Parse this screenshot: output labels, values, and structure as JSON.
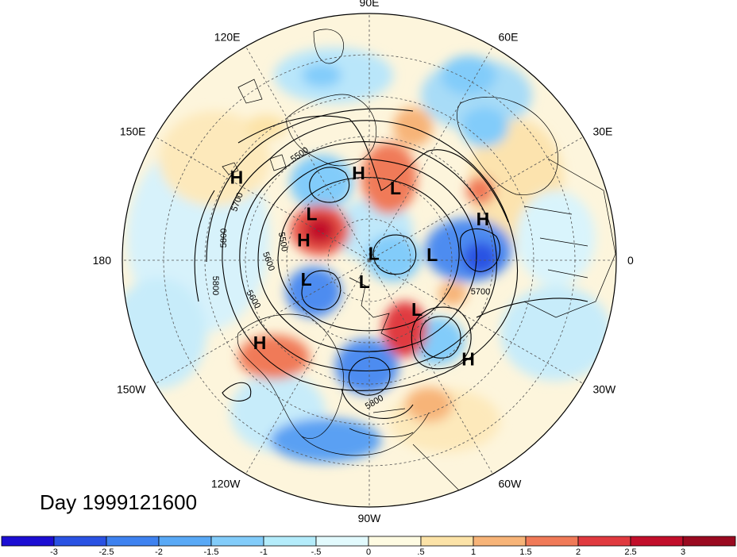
{
  "title": "Day 1999121600",
  "longitude_labels": [
    {
      "text": "90E",
      "angle": 90
    },
    {
      "text": "60E",
      "angle": 60
    },
    {
      "text": "30E",
      "angle": 30
    },
    {
      "text": "0",
      "angle": 0
    },
    {
      "text": "30W",
      "angle": -30
    },
    {
      "text": "60W",
      "angle": -60
    },
    {
      "text": "90W",
      "angle": -90
    },
    {
      "text": "120W",
      "angle": -120
    },
    {
      "text": "150W",
      "angle": -150
    },
    {
      "text": "180",
      "angle": 180
    },
    {
      "text": "150E",
      "angle": 150
    },
    {
      "text": "120E",
      "angle": 120
    }
  ],
  "pressure_centers": [
    {
      "type": "L",
      "lon": 70,
      "lat": 62
    },
    {
      "type": "H",
      "lon": 97,
      "lat": 58
    },
    {
      "type": "H",
      "lon": 148,
      "lat": 33
    },
    {
      "type": "L",
      "lon": 141,
      "lat": 63
    },
    {
      "type": "H",
      "lon": 163,
      "lat": 65
    },
    {
      "type": "H",
      "lon": 20,
      "lat": 46
    },
    {
      "type": "L",
      "lon": 56,
      "lat": 87
    },
    {
      "type": "L",
      "lon": 5,
      "lat": 67
    },
    {
      "type": "L",
      "lon": -163,
      "lat": 66
    },
    {
      "type": "L",
      "lon": -103,
      "lat": 82
    },
    {
      "type": "L",
      "lon": -46,
      "lat": 65
    },
    {
      "type": "H",
      "lon": -143,
      "lat": 40
    },
    {
      "type": "H",
      "lon": -45,
      "lat": 39
    }
  ],
  "contour_labels": [
    "5800",
    "5700",
    "5600",
    "5500",
    "5800",
    "5700",
    "5800",
    "5600",
    "5500"
  ],
  "colorbar": {
    "tick_labels": [
      "-3",
      "-2.5",
      "-2",
      "-1.5",
      "-1",
      "-.5",
      "0",
      ".5",
      "1",
      "1.5",
      "2",
      "2.5",
      "3"
    ],
    "colors": [
      "#1c0ed3",
      "#2a52e3",
      "#3e82f0",
      "#59a9f6",
      "#82ccfa",
      "#b4ecfb",
      "#e2fafd",
      "#fefbe2",
      "#fce3a8",
      "#f7b478",
      "#f07a58",
      "#e03a3f",
      "#c20f2b",
      "#9a0a20"
    ]
  }
}
